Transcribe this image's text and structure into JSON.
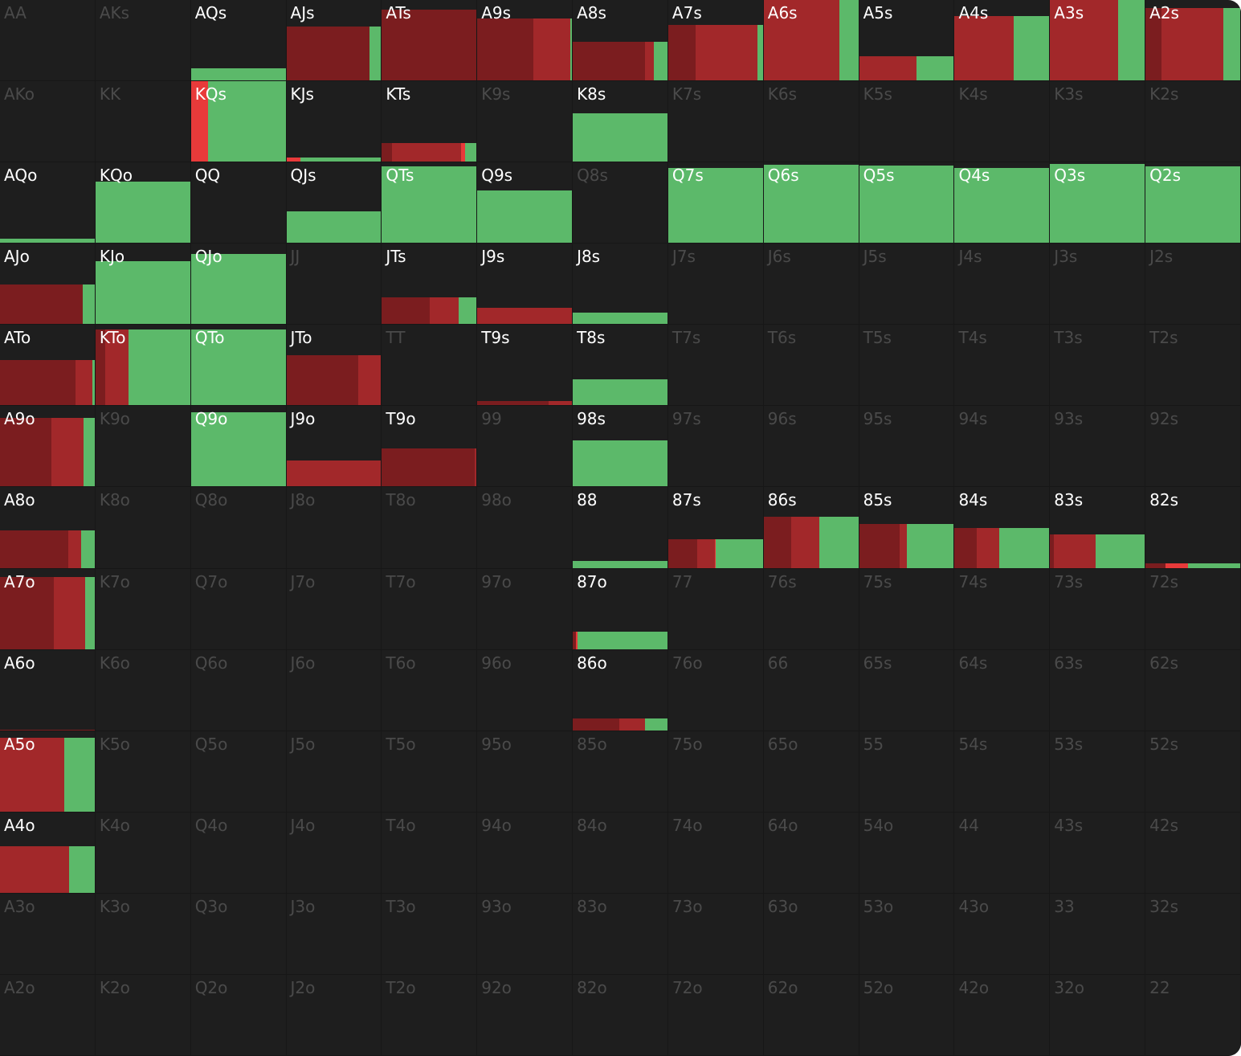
{
  "mix_colors": [
    "#7b1d1f",
    "#a2282a",
    "#e83a3a",
    "#5cb96a"
  ],
  "grid": {
    "rows": [
      [
        {
          "hand": "AA"
        },
        {
          "hand": "AKs"
        },
        {
          "hand": "AQs",
          "active": true,
          "height": 15,
          "mix": [
            0,
            0,
            0,
            100
          ]
        },
        {
          "hand": "AJs",
          "active": true,
          "height": 67,
          "mix": [
            88,
            0,
            0,
            12
          ]
        },
        {
          "hand": "ATs",
          "active": true,
          "height": 88,
          "mix": [
            100,
            0,
            0,
            0
          ]
        },
        {
          "hand": "A9s",
          "active": true,
          "height": 77,
          "mix": [
            59,
            39,
            0,
            2
          ]
        },
        {
          "hand": "A8s",
          "active": true,
          "height": 48,
          "mix": [
            76,
            10,
            0,
            14
          ]
        },
        {
          "hand": "A7s",
          "active": true,
          "height": 69,
          "mix": [
            29,
            65,
            0,
            6
          ]
        },
        {
          "hand": "A6s",
          "active": true,
          "height": 100,
          "mix": [
            0,
            80,
            0,
            20
          ]
        },
        {
          "hand": "A5s",
          "active": true,
          "height": 30,
          "mix": [
            0,
            61,
            0,
            39
          ]
        },
        {
          "hand": "A4s",
          "active": true,
          "height": 80,
          "mix": [
            0,
            62,
            0,
            38
          ]
        },
        {
          "hand": "A3s",
          "active": true,
          "height": 100,
          "mix": [
            0,
            72,
            0,
            28
          ]
        },
        {
          "hand": "A2s",
          "active": true,
          "height": 90,
          "mix": [
            17,
            65,
            0,
            18
          ]
        }
      ],
      [
        {
          "hand": "AKo"
        },
        {
          "hand": "KK"
        },
        {
          "hand": "KQs",
          "active": true,
          "height": 100,
          "mix": [
            0,
            0,
            18,
            82
          ]
        },
        {
          "hand": "KJs",
          "active": true,
          "height": 5,
          "mix": [
            0,
            0,
            15,
            85
          ]
        },
        {
          "hand": "KTs",
          "active": true,
          "height": 23,
          "mix": [
            11,
            73,
            4,
            12
          ]
        },
        {
          "hand": "K9s"
        },
        {
          "hand": "K8s",
          "active": true,
          "height": 60,
          "mix": [
            0,
            0,
            0,
            100
          ]
        },
        {
          "hand": "K7s"
        },
        {
          "hand": "K6s"
        },
        {
          "hand": "K5s"
        },
        {
          "hand": "K4s"
        },
        {
          "hand": "K3s"
        },
        {
          "hand": "K2s"
        }
      ],
      [
        {
          "hand": "AQo",
          "active": true,
          "height": 5,
          "mix": [
            0,
            0,
            0,
            100
          ]
        },
        {
          "hand": "KQo",
          "active": true,
          "height": 76,
          "mix": [
            0,
            0,
            0,
            100
          ]
        },
        {
          "hand": "QQ",
          "active": true
        },
        {
          "hand": "QJs",
          "active": true,
          "height": 39,
          "mix": [
            0,
            0,
            0,
            100
          ]
        },
        {
          "hand": "QTs",
          "active": true,
          "height": 95,
          "mix": [
            0,
            0,
            0,
            100
          ]
        },
        {
          "hand": "Q9s",
          "active": true,
          "height": 65,
          "mix": [
            0,
            0,
            0,
            100
          ]
        },
        {
          "hand": "Q8s"
        },
        {
          "hand": "Q7s",
          "active": true,
          "height": 93,
          "mix": [
            0,
            0,
            0,
            100
          ]
        },
        {
          "hand": "Q6s",
          "active": true,
          "height": 97,
          "mix": [
            0,
            0,
            0,
            100
          ]
        },
        {
          "hand": "Q5s",
          "active": true,
          "height": 96,
          "mix": [
            0,
            0,
            0,
            100
          ]
        },
        {
          "hand": "Q4s",
          "active": true,
          "height": 93,
          "mix": [
            0,
            0,
            0,
            100
          ]
        },
        {
          "hand": "Q3s",
          "active": true,
          "height": 98,
          "mix": [
            0,
            0,
            0,
            100
          ]
        },
        {
          "hand": "Q2s",
          "active": true,
          "height": 95,
          "mix": [
            0,
            0,
            0,
            100
          ]
        }
      ],
      [
        {
          "hand": "AJo",
          "active": true,
          "height": 49,
          "mix": [
            87,
            0,
            0,
            13
          ]
        },
        {
          "hand": "KJo",
          "active": true,
          "height": 78,
          "mix": [
            0,
            0,
            0,
            100
          ]
        },
        {
          "hand": "QJo",
          "active": true,
          "height": 87,
          "mix": [
            0,
            0,
            0,
            100
          ]
        },
        {
          "hand": "JJ"
        },
        {
          "hand": "JTs",
          "active": true,
          "height": 33,
          "mix": [
            51,
            30,
            0,
            19
          ]
        },
        {
          "hand": "J9s",
          "active": true,
          "height": 20,
          "mix": [
            0,
            100,
            0,
            0
          ]
        },
        {
          "hand": "J8s",
          "active": true,
          "height": 14,
          "mix": [
            0,
            0,
            0,
            100
          ]
        },
        {
          "hand": "J7s"
        },
        {
          "hand": "J6s"
        },
        {
          "hand": "J5s"
        },
        {
          "hand": "J4s"
        },
        {
          "hand": "J3s"
        },
        {
          "hand": "J2s"
        }
      ],
      [
        {
          "hand": "ATo",
          "active": true,
          "height": 56,
          "mix": [
            80,
            18,
            0,
            2
          ]
        },
        {
          "hand": "KTo",
          "active": true,
          "height": 94,
          "mix": [
            10,
            25,
            0,
            65
          ]
        },
        {
          "hand": "QTo",
          "active": true,
          "height": 94,
          "mix": [
            0,
            0,
            0,
            100
          ]
        },
        {
          "hand": "JTo",
          "active": true,
          "height": 62,
          "mix": [
            76,
            24,
            0,
            0
          ]
        },
        {
          "hand": "TT"
        },
        {
          "hand": "T9s",
          "active": true,
          "height": 5,
          "mix": [
            75,
            25,
            0,
            0
          ]
        },
        {
          "hand": "T8s",
          "active": true,
          "height": 32,
          "mix": [
            0,
            0,
            0,
            100
          ]
        },
        {
          "hand": "T7s"
        },
        {
          "hand": "T6s"
        },
        {
          "hand": "T5s"
        },
        {
          "hand": "T4s"
        },
        {
          "hand": "T3s"
        },
        {
          "hand": "T2s"
        }
      ],
      [
        {
          "hand": "A9o",
          "active": true,
          "height": 85,
          "mix": [
            54,
            34,
            0,
            12
          ]
        },
        {
          "hand": "K9o"
        },
        {
          "hand": "Q9o",
          "active": true,
          "height": 92,
          "mix": [
            0,
            0,
            0,
            100
          ]
        },
        {
          "hand": "J9o",
          "active": true,
          "height": 32,
          "mix": [
            0,
            100,
            0,
            0
          ]
        },
        {
          "hand": "T9o",
          "active": true,
          "height": 47,
          "mix": [
            98,
            2,
            0,
            0
          ]
        },
        {
          "hand": "99"
        },
        {
          "hand": "98s",
          "active": true,
          "height": 57,
          "mix": [
            0,
            0,
            0,
            100
          ]
        },
        {
          "hand": "97s"
        },
        {
          "hand": "96s"
        },
        {
          "hand": "95s"
        },
        {
          "hand": "94s"
        },
        {
          "hand": "93s"
        },
        {
          "hand": "92s"
        }
      ],
      [
        {
          "hand": "A8o",
          "active": true,
          "height": 47,
          "mix": [
            72,
            14,
            0,
            14
          ]
        },
        {
          "hand": "K8o"
        },
        {
          "hand": "Q8o"
        },
        {
          "hand": "J8o"
        },
        {
          "hand": "T8o"
        },
        {
          "hand": "98o"
        },
        {
          "hand": "88",
          "active": true,
          "height": 9,
          "mix": [
            0,
            0,
            0,
            100
          ]
        },
        {
          "hand": "87s",
          "active": true,
          "height": 36,
          "mix": [
            31,
            18,
            1,
            50
          ]
        },
        {
          "hand": "86s",
          "active": true,
          "height": 63,
          "mix": [
            29,
            30,
            0,
            41
          ]
        },
        {
          "hand": "85s",
          "active": true,
          "height": 55,
          "mix": [
            43,
            7,
            0,
            50
          ]
        },
        {
          "hand": "84s",
          "active": true,
          "height": 50,
          "mix": [
            23,
            24,
            0,
            53
          ]
        },
        {
          "hand": "83s",
          "active": true,
          "height": 42,
          "mix": [
            4,
            44,
            0,
            52
          ]
        },
        {
          "hand": "82s",
          "active": true,
          "height": 6,
          "mix": [
            21,
            0,
            24,
            55
          ]
        }
      ],
      [
        {
          "hand": "A7o",
          "active": true,
          "height": 90,
          "mix": [
            57,
            33,
            0,
            10
          ]
        },
        {
          "hand": "K7o"
        },
        {
          "hand": "Q7o"
        },
        {
          "hand": "J7o"
        },
        {
          "hand": "T7o"
        },
        {
          "hand": "97o"
        },
        {
          "hand": "87o",
          "active": true,
          "height": 22,
          "mix": [
            3,
            0,
            2,
            95
          ]
        },
        {
          "hand": "77"
        },
        {
          "hand": "76s"
        },
        {
          "hand": "75s"
        },
        {
          "hand": "74s"
        },
        {
          "hand": "73s"
        },
        {
          "hand": "72s"
        }
      ],
      [
        {
          "hand": "A6o",
          "active": true,
          "height": 1,
          "mix": [
            100,
            0,
            0,
            0
          ]
        },
        {
          "hand": "K6o"
        },
        {
          "hand": "Q6o"
        },
        {
          "hand": "J6o"
        },
        {
          "hand": "T6o"
        },
        {
          "hand": "96o"
        },
        {
          "hand": "86o",
          "active": true,
          "height": 15,
          "mix": [
            49,
            27,
            0,
            24
          ]
        },
        {
          "hand": "76o"
        },
        {
          "hand": "66"
        },
        {
          "hand": "65s"
        },
        {
          "hand": "64s"
        },
        {
          "hand": "63s"
        },
        {
          "hand": "62s"
        }
      ],
      [
        {
          "hand": "A5o",
          "active": true,
          "height": 92,
          "mix": [
            0,
            68,
            0,
            32
          ]
        },
        {
          "hand": "K5o"
        },
        {
          "hand": "Q5o"
        },
        {
          "hand": "J5o"
        },
        {
          "hand": "T5o"
        },
        {
          "hand": "95o"
        },
        {
          "hand": "85o"
        },
        {
          "hand": "75o"
        },
        {
          "hand": "65o"
        },
        {
          "hand": "55"
        },
        {
          "hand": "54s"
        },
        {
          "hand": "53s"
        },
        {
          "hand": "52s"
        }
      ],
      [
        {
          "hand": "A4o",
          "active": true,
          "height": 58,
          "mix": [
            0,
            73,
            0,
            27
          ]
        },
        {
          "hand": "K4o"
        },
        {
          "hand": "Q4o"
        },
        {
          "hand": "J4o"
        },
        {
          "hand": "T4o"
        },
        {
          "hand": "94o"
        },
        {
          "hand": "84o"
        },
        {
          "hand": "74o"
        },
        {
          "hand": "64o"
        },
        {
          "hand": "54o"
        },
        {
          "hand": "44"
        },
        {
          "hand": "43s"
        },
        {
          "hand": "42s"
        }
      ],
      [
        {
          "hand": "A3o"
        },
        {
          "hand": "K3o"
        },
        {
          "hand": "Q3o"
        },
        {
          "hand": "J3o"
        },
        {
          "hand": "T3o"
        },
        {
          "hand": "93o"
        },
        {
          "hand": "83o"
        },
        {
          "hand": "73o"
        },
        {
          "hand": "63o"
        },
        {
          "hand": "53o"
        },
        {
          "hand": "43o"
        },
        {
          "hand": "33"
        },
        {
          "hand": "32s"
        }
      ],
      [
        {
          "hand": "A2o"
        },
        {
          "hand": "K2o"
        },
        {
          "hand": "Q2o"
        },
        {
          "hand": "J2o"
        },
        {
          "hand": "T2o"
        },
        {
          "hand": "92o"
        },
        {
          "hand": "82o"
        },
        {
          "hand": "72o"
        },
        {
          "hand": "62o"
        },
        {
          "hand": "52o"
        },
        {
          "hand": "42o"
        },
        {
          "hand": "32o"
        },
        {
          "hand": "22"
        }
      ]
    ]
  }
}
